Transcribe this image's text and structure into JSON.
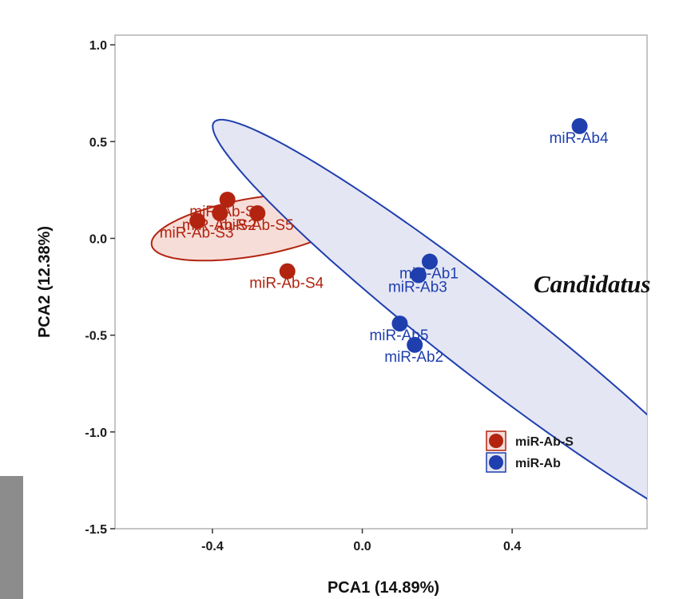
{
  "chart_data": {
    "type": "scatter",
    "xlabel": "PCA1 (14.89%)",
    "ylabel": "PCA2 (12.38%)",
    "xlim": [
      -0.66,
      0.76
    ],
    "ylim": [
      -1.5,
      1.05
    ],
    "xticks": [
      {
        "value": -0.4,
        "label": "-0.4"
      },
      {
        "value": 0.0,
        "label": "0.0"
      },
      {
        "value": 0.4,
        "label": "0.4"
      }
    ],
    "yticks": [
      {
        "value": 1.0,
        "label": "1.0"
      },
      {
        "value": 0.5,
        "label": "0.5"
      },
      {
        "value": 0.0,
        "label": "0.0"
      },
      {
        "value": -0.5,
        "label": "-0.5"
      },
      {
        "value": -1.0,
        "label": "-1.0"
      },
      {
        "value": -1.5,
        "label": "-1.5"
      }
    ],
    "grid": false,
    "legend_position": "bottom-right",
    "series": [
      {
        "name": "miR-Ab-S",
        "color": "#b32410",
        "fill": "#f6ddd8",
        "ellipse": {
          "cx": -0.29,
          "cy": 0.058,
          "rx": 0.29,
          "ry": 0.142,
          "angle_deg": 23
        },
        "points": [
          {
            "label": "miR-Ab-S1",
            "x": -0.36,
            "y": 0.2
          },
          {
            "label": "miR-Ab-S2",
            "x": -0.38,
            "y": 0.13
          },
          {
            "label": "miR-Ab-S3",
            "x": -0.44,
            "y": 0.09
          },
          {
            "label": "miR-Ab-S4",
            "x": -0.2,
            "y": -0.17
          },
          {
            "label": "miR-Ab-S5",
            "x": -0.28,
            "y": 0.13
          }
        ]
      },
      {
        "name": "miR-Ab",
        "color": "#1f3fae",
        "fill": "#e4e6f4",
        "ellipse": {
          "cx": 0.32,
          "cy": -0.48,
          "rx": 1.3,
          "ry": 0.152,
          "angle_deg": -57
        },
        "points": [
          {
            "label": "miR-Ab1",
            "x": 0.18,
            "y": -0.12
          },
          {
            "label": "miR-Ab2",
            "x": 0.14,
            "y": -0.55
          },
          {
            "label": "miR-Ab3",
            "x": 0.15,
            "y": -0.19
          },
          {
            "label": "miR-Ab4",
            "x": 0.58,
            "y": 0.58
          },
          {
            "label": "miR-Ab5",
            "x": 0.1,
            "y": -0.44
          }
        ]
      }
    ]
  },
  "overlay": {
    "side_text": "Candidatus"
  }
}
